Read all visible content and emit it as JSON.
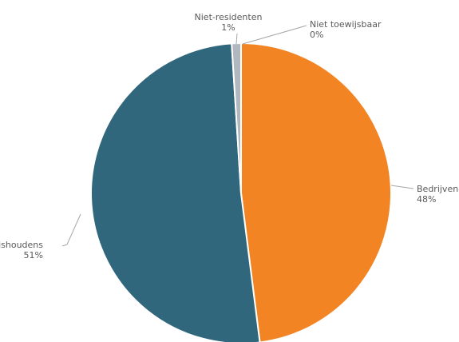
{
  "chart_data": {
    "type": "pie",
    "start_angle_deg": 0,
    "direction": "clockwise",
    "slices": [
      {
        "name": "Bedrijven",
        "value": 48,
        "pct_label": "48%",
        "color": "#F28423"
      },
      {
        "name": "Huishoudens",
        "value": 51,
        "pct_label": "51%",
        "color": "#30677C"
      },
      {
        "name": "Niet-residenten",
        "value": 1,
        "pct_label": "1%",
        "color": "#B0B7BF"
      },
      {
        "name": "Niet toewijsbaar",
        "value": 0,
        "pct_label": "0%",
        "color": "#D9D9D9"
      }
    ],
    "title": "",
    "legend": "none",
    "data_labels": "outside-with-leader-lines"
  }
}
